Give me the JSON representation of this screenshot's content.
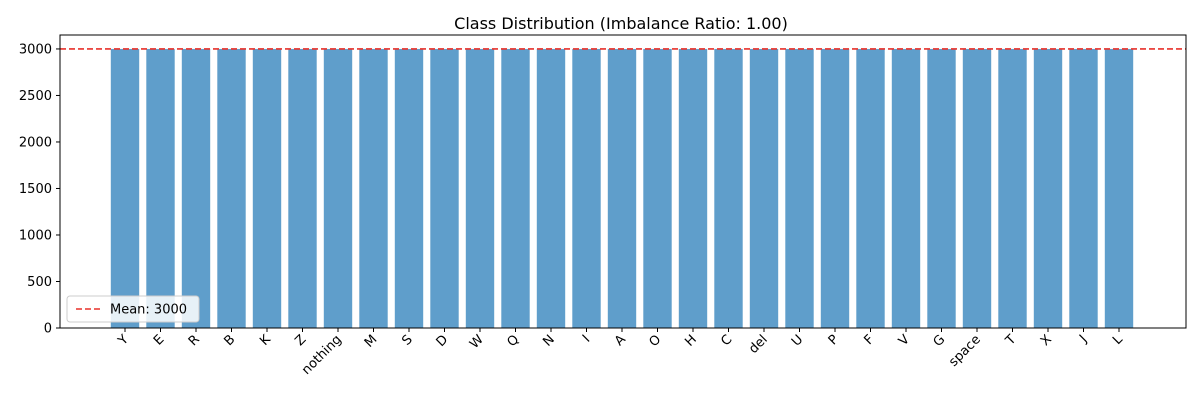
{
  "chart_data": {
    "type": "bar",
    "title": "Class Distribution (Imbalance Ratio: 1.00)",
    "xlabel": "",
    "ylabel": "",
    "categories": [
      "Y",
      "E",
      "R",
      "B",
      "K",
      "Z",
      "nothing",
      "M",
      "S",
      "D",
      "W",
      "Q",
      "N",
      "I",
      "A",
      "O",
      "H",
      "C",
      "del",
      "U",
      "P",
      "F",
      "V",
      "G",
      "space",
      "T",
      "X",
      "J",
      "L"
    ],
    "values": [
      3000,
      3000,
      3000,
      3000,
      3000,
      3000,
      3000,
      3000,
      3000,
      3000,
      3000,
      3000,
      3000,
      3000,
      3000,
      3000,
      3000,
      3000,
      3000,
      3000,
      3000,
      3000,
      3000,
      3000,
      3000,
      3000,
      3000,
      3000,
      3000
    ],
    "ylim": [
      0,
      3150
    ],
    "yticks": [
      0,
      500,
      1000,
      1500,
      2000,
      2500,
      3000
    ],
    "x_tick_rotation": 45,
    "grid": false,
    "bar_color": "#5f9ecb",
    "reference_line": {
      "value": 3000,
      "label": "Mean: 3000",
      "color": "#e8302a",
      "style": "dashed"
    },
    "legend": {
      "position": "lower-left",
      "entries": [
        "Mean: 3000"
      ]
    }
  }
}
